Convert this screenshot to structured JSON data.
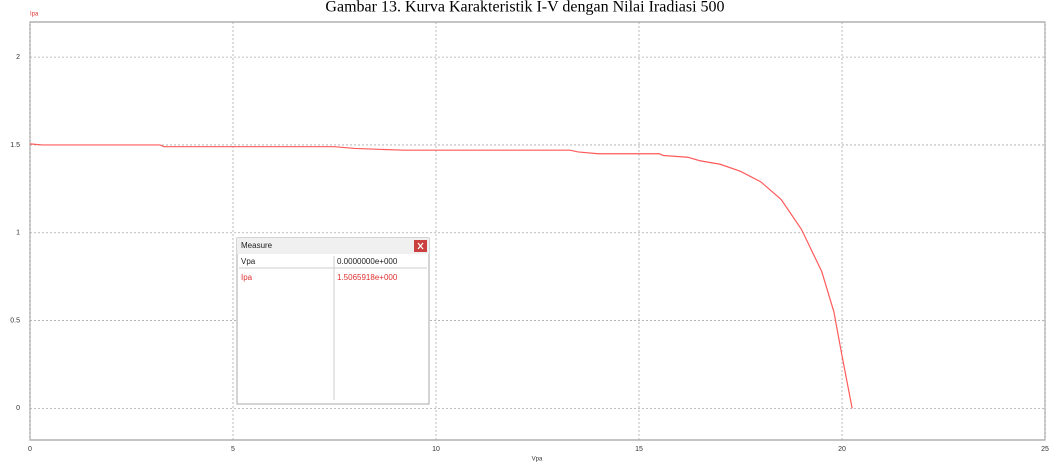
{
  "chart_data": {
    "type": "line",
    "title": "Gambar 13. Kurva Karakteristik I-V dengan Nilai Iradiasi 500",
    "xlabel": "Vpa",
    "ylabel": "Ipa",
    "x": [
      0,
      0.3,
      3.2,
      3.3,
      7.5,
      8,
      9.2,
      13.3,
      13.5,
      14,
      15.5,
      15.6,
      16.2,
      16.5,
      17,
      17.5,
      18,
      18.5,
      19,
      19.5,
      19.8,
      20,
      20.25
    ],
    "series": [
      {
        "name": "Ipa",
        "color": "#ff5a5a",
        "values": [
          1.506,
          1.5,
          1.5,
          1.49,
          1.49,
          1.48,
          1.47,
          1.47,
          1.46,
          1.45,
          1.45,
          1.44,
          1.43,
          1.41,
          1.39,
          1.35,
          1.29,
          1.19,
          1.02,
          0.78,
          0.55,
          0.3,
          0
        ]
      }
    ],
    "xlim": [
      0,
      25
    ],
    "xticks": [
      0,
      5,
      10,
      15,
      20,
      25
    ],
    "ylim": [
      -0.18,
      2.2
    ],
    "yticks": [
      0,
      0.5,
      1,
      1.5,
      2
    ],
    "grid": true
  },
  "measure": {
    "title": "Measure",
    "rows": [
      [
        "Vpa",
        "0.0000000e+000"
      ],
      [
        "Ipa",
        "1.5065918e+000"
      ]
    ]
  }
}
